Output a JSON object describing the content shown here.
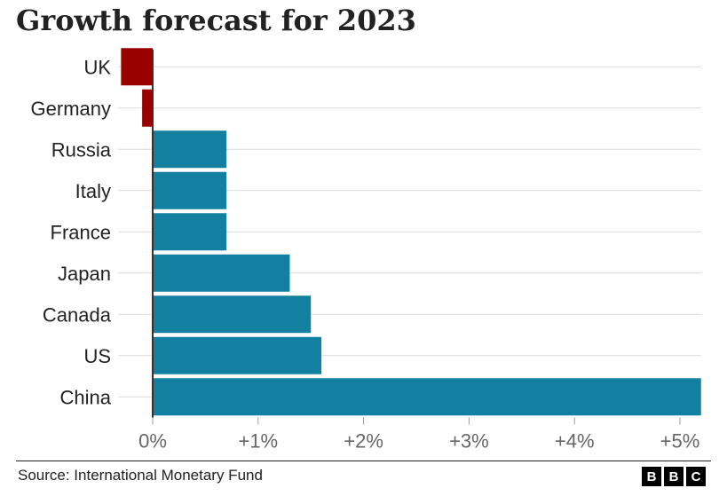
{
  "header": {
    "title": "Growth forecast for 2023"
  },
  "footer": {
    "source": "Source: International Monetary Fund",
    "logo": [
      "B",
      "B",
      "C"
    ]
  },
  "colors": {
    "negative": "#990000",
    "positive": "#1380A1",
    "grid": "#dcdcdc",
    "text": "#222222",
    "axis_text": "#666666"
  },
  "chart_data": {
    "type": "bar",
    "orientation": "horizontal",
    "title": "Growth forecast for 2023",
    "categories": [
      "UK",
      "Germany",
      "Russia",
      "Italy",
      "France",
      "Japan",
      "Canada",
      "US",
      "China"
    ],
    "values": [
      -0.3,
      -0.1,
      0.7,
      0.7,
      0.7,
      1.3,
      1.5,
      1.6,
      5.2
    ],
    "xlim": [
      -0.3,
      5.2
    ],
    "xticks": [
      0,
      1,
      2,
      3,
      4,
      5
    ],
    "xtick_labels": [
      "0%",
      "+1%",
      "+2%",
      "+3%",
      "+4%",
      "+5%"
    ],
    "grid": true,
    "xlabel": "",
    "ylabel": ""
  }
}
